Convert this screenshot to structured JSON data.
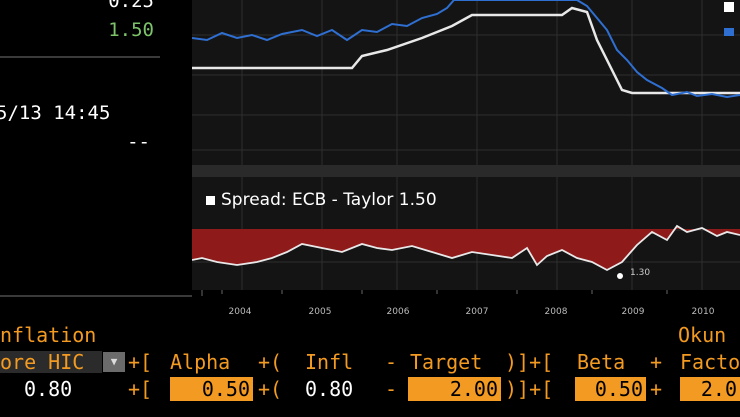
{
  "left_panel": {
    "value1": "0.25",
    "value2": "1.50",
    "timestamp": "5/13 14:45",
    "dash": "--"
  },
  "chart": {
    "spread_legend": "Spread: ECB - Taylor 1.50",
    "low_label": "1.30",
    "x_ticks": [
      "2004",
      "2005",
      "2006",
      "2007",
      "2008",
      "2009",
      "2010"
    ]
  },
  "formula": {
    "label_inflation": "nflation",
    "label_okun": "Okun",
    "core_hicp": "ore HIC",
    "op_plus_bracket1": "+[",
    "alpha": "Alpha",
    "op_plus_paren": "+(",
    "infl": "Infl",
    "minus": "-",
    "target": "Target",
    "op_close": ")]+[",
    "beta": "Beta",
    "op_plus": "+",
    "factor": "Facto",
    "row_value_infl": "0.80",
    "alpha_value": "0.50",
    "infl_value": "0.80",
    "target_value": "2.00",
    "beta_value": "0.50",
    "factor_value": "2.0"
  },
  "colors": {
    "orange": "#f29a21",
    "green": "#7cc36a",
    "blue_series": "#2f6fd1",
    "spread_fill": "#8e1a1a"
  }
}
